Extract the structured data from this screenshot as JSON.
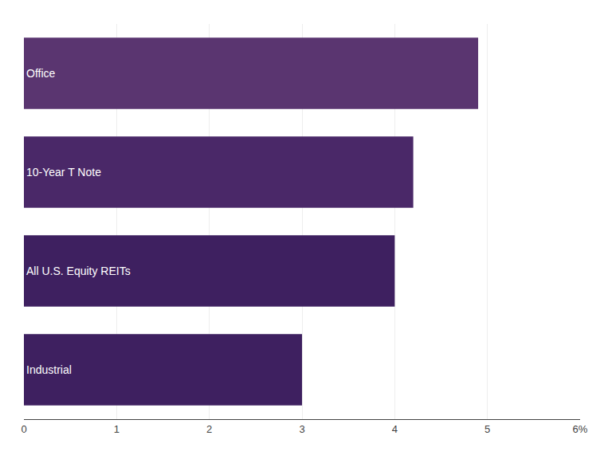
{
  "chart_data": {
    "type": "bar",
    "orientation": "horizontal",
    "categories": [
      "Office",
      "10-Year T Note",
      "All U.S. Equity REITs",
      "Industrial"
    ],
    "values": [
      4.9,
      4.2,
      4.0,
      3.0
    ],
    "colors": [
      "#5a3570",
      "#4a2868",
      "#3e2060",
      "#3e2060"
    ],
    "xlim": [
      0,
      6
    ],
    "xticks": [
      0,
      1,
      2,
      3,
      4,
      5,
      {
        "value": 6,
        "label": "6%"
      }
    ],
    "grid": true,
    "tick_labels": "x"
  }
}
